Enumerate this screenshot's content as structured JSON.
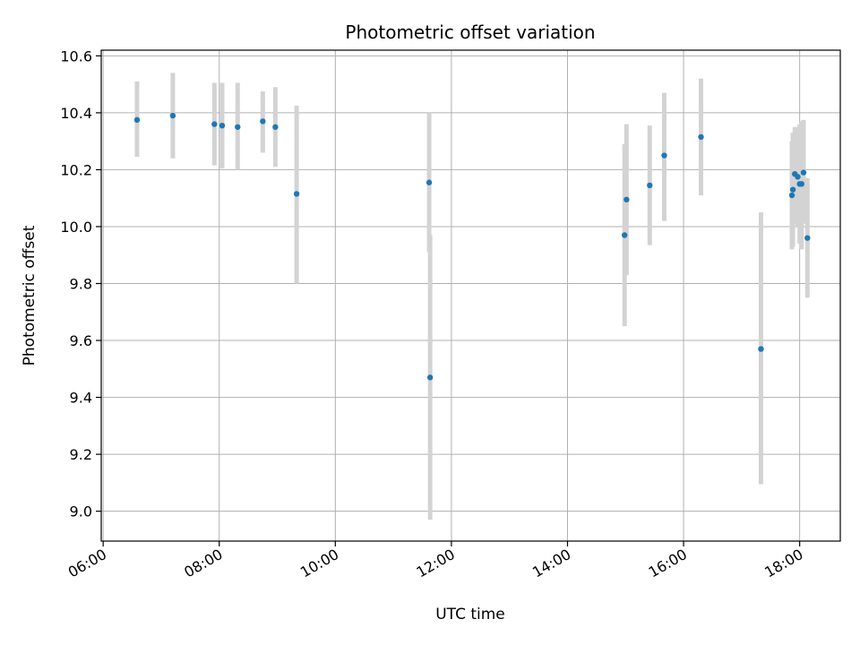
{
  "chart_data": {
    "type": "scatter",
    "title": "Photometric offset variation",
    "xlabel": "UTC time",
    "ylabel": "Photometric offset",
    "xlim": [
      "05:58",
      "18:42"
    ],
    "ylim": [
      8.895,
      10.62
    ],
    "x_ticks": [
      "06:00",
      "08:00",
      "10:00",
      "12:00",
      "14:00",
      "16:00",
      "18:00"
    ],
    "y_ticks": [
      "9.0",
      "9.2",
      "9.4",
      "9.6",
      "9.8",
      "10.0",
      "10.2",
      "10.4",
      "10.6"
    ],
    "grid": true,
    "colors": {
      "point": "#1f77b4",
      "errorbar": "#d3d3d3",
      "grid": "#b0b0b0",
      "axes": "#000000"
    },
    "points": [
      {
        "time": "06:35",
        "value": 10.375,
        "err_low": 10.245,
        "err_high": 10.51
      },
      {
        "time": "07:12",
        "value": 10.39,
        "err_low": 10.24,
        "err_high": 10.54
      },
      {
        "time": "07:55",
        "value": 10.36,
        "err_low": 10.215,
        "err_high": 10.505
      },
      {
        "time": "08:03",
        "value": 10.355,
        "err_low": 10.205,
        "err_high": 10.505
      },
      {
        "time": "08:19",
        "value": 10.35,
        "err_low": 10.2,
        "err_high": 10.505
      },
      {
        "time": "08:45",
        "value": 10.37,
        "err_low": 10.26,
        "err_high": 10.475
      },
      {
        "time": "08:58",
        "value": 10.35,
        "err_low": 10.21,
        "err_high": 10.49
      },
      {
        "time": "09:20",
        "value": 10.115,
        "err_low": 9.8,
        "err_high": 10.425
      },
      {
        "time": "11:37",
        "value": 10.155,
        "err_low": 9.91,
        "err_high": 10.4
      },
      {
        "time": "11:38",
        "value": 9.47,
        "err_low": 8.97,
        "err_high": 9.97
      },
      {
        "time": "14:59",
        "value": 9.97,
        "err_low": 9.65,
        "err_high": 10.29
      },
      {
        "time": "15:01",
        "value": 10.095,
        "err_low": 9.83,
        "err_high": 10.36
      },
      {
        "time": "15:25",
        "value": 10.145,
        "err_low": 9.935,
        "err_high": 10.355
      },
      {
        "time": "15:40",
        "value": 10.25,
        "err_low": 10.02,
        "err_high": 10.47
      },
      {
        "time": "16:18",
        "value": 10.315,
        "err_low": 10.11,
        "err_high": 10.52
      },
      {
        "time": "17:20",
        "value": 9.57,
        "err_low": 9.095,
        "err_high": 10.05
      },
      {
        "time": "17:52",
        "value": 10.11,
        "err_low": 9.92,
        "err_high": 10.3
      },
      {
        "time": "17:53",
        "value": 10.13,
        "err_low": 9.93,
        "err_high": 10.33
      },
      {
        "time": "17:55",
        "value": 10.185,
        "err_low": 10.01,
        "err_high": 10.35
      },
      {
        "time": "17:58",
        "value": 10.175,
        "err_low": 10.0,
        "err_high": 10.35
      },
      {
        "time": "18:00",
        "value": 10.15,
        "err_low": 9.94,
        "err_high": 10.36
      },
      {
        "time": "18:02",
        "value": 10.15,
        "err_low": 9.92,
        "err_high": 10.37
      },
      {
        "time": "18:04",
        "value": 10.19,
        "err_low": 10.01,
        "err_high": 10.375
      },
      {
        "time": "18:08",
        "value": 9.96,
        "err_low": 9.75,
        "err_high": 10.17
      }
    ]
  }
}
